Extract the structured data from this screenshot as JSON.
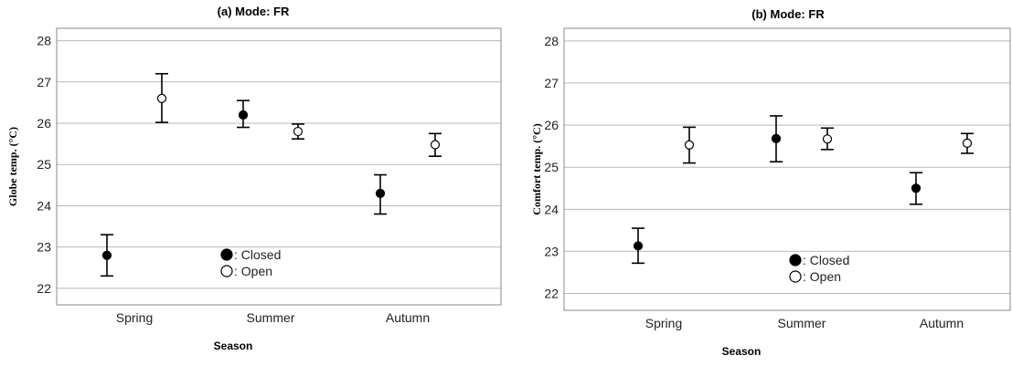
{
  "chart_data": [
    {
      "type": "scatter",
      "title": "(a) Mode: FR",
      "xlabel": "Season",
      "ylabel": "Globe temp. (°C)",
      "categories": [
        "Spring",
        "Summer",
        "Autumn"
      ],
      "ylim": [
        21.6,
        28.3
      ],
      "yticks": [
        22,
        23,
        24,
        25,
        26,
        27,
        28
      ],
      "grid": true,
      "legend_position": "center-bottom",
      "series": [
        {
          "name": ": Closed",
          "marker": "filled",
          "values": [
            22.8,
            26.2,
            24.3
          ],
          "lower": [
            22.3,
            25.9,
            23.8
          ],
          "upper": [
            23.3,
            26.55,
            24.75
          ]
        },
        {
          "name": ": Open",
          "marker": "hollow",
          "values": [
            26.6,
            25.8,
            25.48
          ],
          "lower": [
            26.02,
            25.62,
            25.2
          ],
          "upper": [
            27.2,
            25.98,
            25.75
          ]
        }
      ]
    },
    {
      "type": "scatter",
      "title": "(b) Mode: FR",
      "xlabel": "Season",
      "ylabel": "Comfort temp. (°C)",
      "categories": [
        "Spring",
        "Summer",
        "Autumn"
      ],
      "ylim": [
        21.6,
        28.3
      ],
      "yticks": [
        22,
        23,
        24,
        25,
        26,
        27,
        28
      ],
      "grid": true,
      "legend_position": "center-bottom",
      "series": [
        {
          "name": ": Closed",
          "marker": "filled",
          "values": [
            23.13,
            25.68,
            24.5
          ],
          "lower": [
            22.72,
            25.13,
            24.12
          ],
          "upper": [
            23.55,
            26.22,
            24.87
          ]
        },
        {
          "name": ": Open",
          "marker": "hollow",
          "values": [
            25.53,
            25.67,
            25.57
          ],
          "lower": [
            25.1,
            25.42,
            25.33
          ],
          "upper": [
            25.95,
            25.93,
            25.8
          ]
        }
      ]
    }
  ]
}
